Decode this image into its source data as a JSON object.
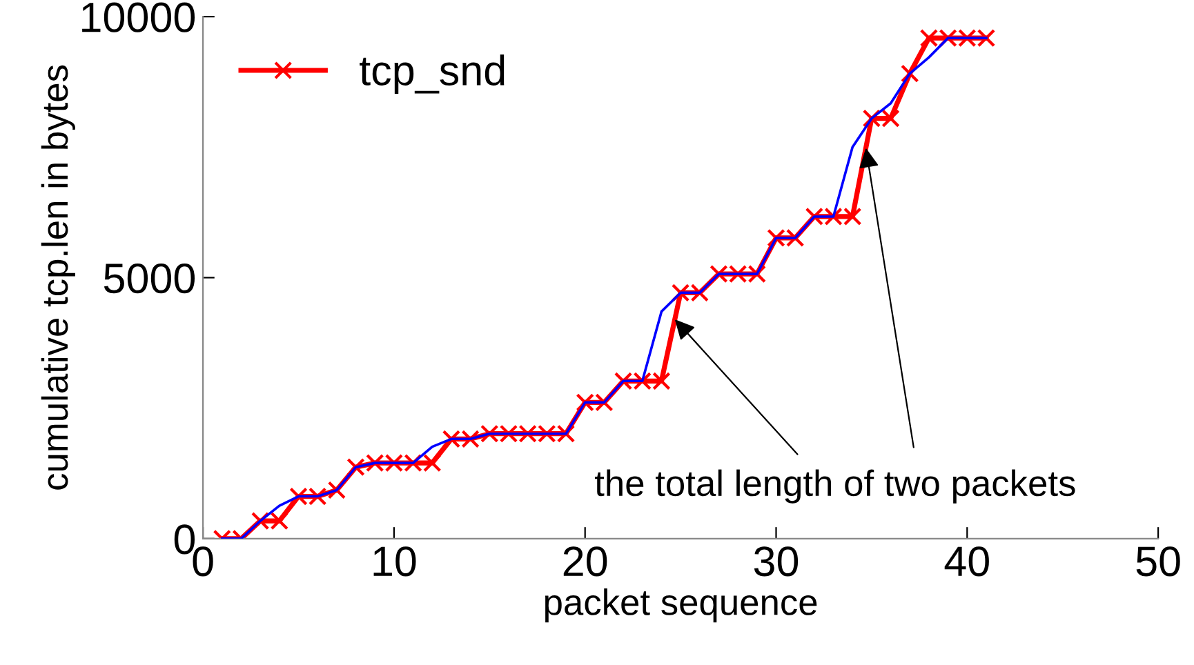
{
  "chart_data": {
    "type": "line",
    "xlabel": "packet sequence",
    "ylabel": "cumulative tcp.len in bytes",
    "xlim": [
      0,
      50
    ],
    "xticks": [
      0,
      10,
      20,
      30,
      40,
      50
    ],
    "ylim": [
      0,
      10000
    ],
    "yticks": [
      0,
      5000,
      10000
    ],
    "grid": false,
    "legend": "top left",
    "series": [
      {
        "name": "tcp_snd",
        "color": "#ff0000",
        "marker": "cross",
        "x": [
          1,
          2,
          3,
          4,
          5,
          6,
          7,
          8,
          9,
          10,
          11,
          12,
          13,
          14,
          15,
          16,
          17,
          18,
          19,
          20,
          21,
          22,
          23,
          24,
          25,
          26,
          27,
          28,
          29,
          30,
          31,
          32,
          33,
          34,
          35,
          36,
          37,
          38,
          39,
          40,
          41
        ],
        "values": [
          0,
          0,
          340,
          340,
          810,
          810,
          930,
          1370,
          1450,
          1450,
          1450,
          1450,
          1910,
          1910,
          2010,
          2010,
          2010,
          2010,
          2010,
          2610,
          2610,
          3020,
          3020,
          3020,
          4710,
          4710,
          5070,
          5070,
          5070,
          5760,
          5760,
          6170,
          6170,
          6170,
          8050,
          8050,
          8910,
          9590,
          9590,
          9590,
          9590
        ]
      },
      {
        "color": "#0000ff",
        "marker": "none",
        "x": [
          1,
          2,
          3,
          4,
          5,
          6,
          7,
          8,
          9,
          10,
          11,
          12,
          13,
          14,
          15,
          16,
          17,
          18,
          19,
          20,
          21,
          22,
          23,
          24,
          25,
          26,
          27,
          28,
          29,
          30,
          31,
          32,
          33,
          34,
          35,
          36,
          37,
          38,
          39,
          40,
          41
        ],
        "values": [
          0,
          0,
          340,
          630,
          810,
          810,
          930,
          1370,
          1450,
          1450,
          1450,
          1760,
          1910,
          1910,
          2010,
          2010,
          2010,
          2010,
          2010,
          2610,
          2610,
          3020,
          3020,
          4350,
          4710,
          4710,
          5070,
          5070,
          5070,
          5760,
          5760,
          6170,
          6170,
          7500,
          8050,
          8340,
          8910,
          9220,
          9590,
          9590,
          9590
        ]
      }
    ],
    "annotations": [
      {
        "text": "the total length of two packets",
        "x": 24.7,
        "y": 4200
      }
    ]
  }
}
